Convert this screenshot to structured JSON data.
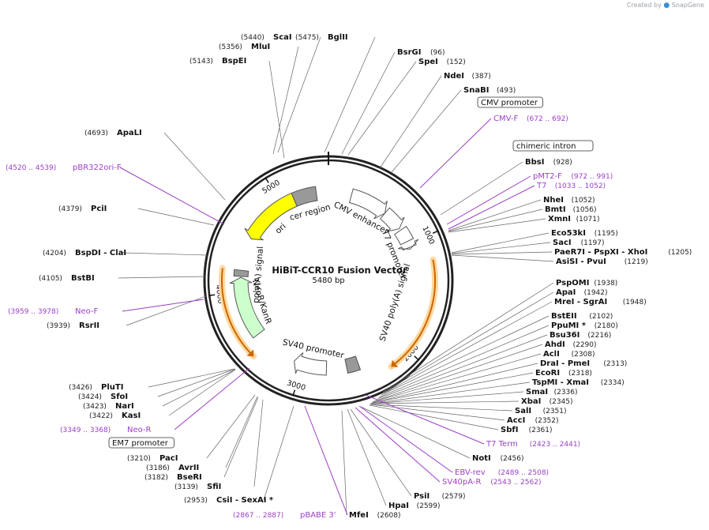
{
  "credit": {
    "prefix": "Created by",
    "brand": "SnapGene"
  },
  "plasmid": {
    "name": "HiBiT-CCR10 Fusion Vector",
    "size_label": "5480 bp",
    "length": 5480
  },
  "ticks": [
    "1000",
    "2000",
    "3000",
    "4000",
    "5000"
  ],
  "features": [
    {
      "name": "CMV enhancer",
      "start": 230,
      "end": 610,
      "color": "#ffffff",
      "dir": 1
    },
    {
      "name": "CMV promoter",
      "start": 610,
      "end": 820,
      "color": "#ffffff",
      "dir": 1
    },
    {
      "name": "chimeric intron",
      "start": 840,
      "end": 970,
      "color": "#ffffff",
      "dir": 0
    },
    {
      "name": "T7 promoter",
      "start": 1033,
      "end": 1052,
      "color": "#ffffff",
      "dir": 1
    },
    {
      "name": "SV40 poly(A) signal",
      "start": 2440,
      "end": 2560,
      "color": "#999999",
      "dir": 0
    },
    {
      "name": "SV40 promoter",
      "start": 2760,
      "end": 3090,
      "color": "#ffffff",
      "dir": 1
    },
    {
      "name": "NeoR/KanR",
      "start": 3540,
      "end": 4140,
      "color": "#ccffcc",
      "dir": 1
    },
    {
      "name": "HSV TK poly(A) signal",
      "start": 4150,
      "end": 4210,
      "color": "#999999",
      "dir": 0
    },
    {
      "name": "ori",
      "start": 4540,
      "end": 5130,
      "color": "#ffff00",
      "dir": -1
    },
    {
      "name": "cer region",
      "start": 5130,
      "end": 5360,
      "color": "#999999",
      "dir": 0
    }
  ],
  "inner_labels": [
    {
      "text": "CMV enhancer",
      "pos": 420
    },
    {
      "text": "T7 promoter",
      "pos": 1040
    },
    {
      "text": "SV40 poly(A) signal",
      "pos": 1650
    },
    {
      "text": "SV40 promoter",
      "pos": 2930
    },
    {
      "text": "NeoR/KanR",
      "pos": 3840
    },
    {
      "text": "poly(A) signal",
      "pos": 4180
    },
    {
      "text": "ori",
      "pos": 4830
    },
    {
      "text": "cer region",
      "pos": 5250
    }
  ],
  "orf_arcs": [
    {
      "start": 1200,
      "end": 2190,
      "dir": 1,
      "color": "#cc6600"
    },
    {
      "start": 3420,
      "end": 4210,
      "dir": -1,
      "color": "#cc6600"
    }
  ],
  "labels": [
    {
      "name": "ScaI",
      "pos": "(5440)",
      "color": "#111"
    },
    {
      "name": "MluI",
      "pos": "(5356)",
      "color": "#111"
    },
    {
      "name": "BspEI",
      "pos": "(5143)",
      "color": "#111"
    },
    {
      "name": "BglII",
      "pos": "(5475)",
      "color": "#111"
    },
    {
      "name": "BsrGI",
      "pos": "(96)",
      "color": "#111"
    },
    {
      "name": "SpeI",
      "pos": "(152)",
      "color": "#111"
    },
    {
      "name": "NdeI",
      "pos": "(387)",
      "color": "#111"
    },
    {
      "name": "SnaBI",
      "pos": "(493)",
      "color": "#111"
    },
    {
      "name": "CMV promoter",
      "pos": "",
      "color": "box"
    },
    {
      "name": "CMV-F",
      "pos": "(672 .. 692)",
      "color": "purple"
    },
    {
      "name": "chimeric intron",
      "pos": "",
      "color": "box"
    },
    {
      "name": "BbsI",
      "pos": "(928)",
      "color": "#111"
    },
    {
      "name": "pMT2-F",
      "pos": "(972 .. 991)",
      "color": "purple"
    },
    {
      "name": "T7",
      "pos": "(1033 .. 1052)",
      "color": "purple"
    },
    {
      "name": "NheI",
      "pos": "(1052)",
      "color": "#111"
    },
    {
      "name": "BmtI",
      "pos": "(1056)",
      "color": "#111"
    },
    {
      "name": "XmnI",
      "pos": "(1071)",
      "color": "#111"
    },
    {
      "name": "Eco53kI",
      "pos": "(1195)",
      "color": "#111"
    },
    {
      "name": "SacI",
      "pos": "(1197)",
      "color": "#111"
    },
    {
      "name": "PaeR7I - PspXI - XhoI",
      "pos": "(1205)",
      "color": "#111"
    },
    {
      "name": "AsiSI - PvuI",
      "pos": "(1219)",
      "color": "#111"
    },
    {
      "name": "PspOMI",
      "pos": "(1938)",
      "color": "#111"
    },
    {
      "name": "ApaI",
      "pos": "(1942)",
      "color": "#111"
    },
    {
      "name": "MreI - SgrAI",
      "pos": "(1948)",
      "color": "#111"
    },
    {
      "name": "BstEII",
      "pos": "(2102)",
      "color": "#111"
    },
    {
      "name": "PpuMI *",
      "pos": "(2180)",
      "color": "#111"
    },
    {
      "name": "Bsu36I",
      "pos": "(2216)",
      "color": "#111"
    },
    {
      "name": "AhdI",
      "pos": "(2290)",
      "color": "#111"
    },
    {
      "name": "AclI",
      "pos": "(2308)",
      "color": "#111"
    },
    {
      "name": "DraI - PmeI",
      "pos": "(2313)",
      "color": "#111"
    },
    {
      "name": "EcoRI",
      "pos": "(2318)",
      "color": "#111"
    },
    {
      "name": "TspMI - XmaI",
      "pos": "(2334)",
      "color": "#111"
    },
    {
      "name": "SmaI",
      "pos": "(2336)",
      "color": "#111"
    },
    {
      "name": "XbaI",
      "pos": "(2345)",
      "color": "#111"
    },
    {
      "name": "SalI",
      "pos": "(2351)",
      "color": "#111"
    },
    {
      "name": "AccI",
      "pos": "(2352)",
      "color": "#111"
    },
    {
      "name": "SbfI",
      "pos": "(2361)",
      "color": "#111"
    },
    {
      "name": "T7 Term",
      "pos": "(2423 .. 2441)",
      "color": "purple"
    },
    {
      "name": "NotI",
      "pos": "(2456)",
      "color": "#111"
    },
    {
      "name": "EBV-rev",
      "pos": "(2489 .. 2508)",
      "color": "purple"
    },
    {
      "name": "SV40pA-R",
      "pos": "(2543 .. 2562)",
      "color": "purple"
    },
    {
      "name": "PsiI",
      "pos": "(2579)",
      "color": "#111"
    },
    {
      "name": "HpaI",
      "pos": "(2599)",
      "color": "#111"
    },
    {
      "name": "MfeI",
      "pos": "(2608)",
      "color": "#111"
    },
    {
      "name": "pBABE 3'",
      "pos": "(2867 .. 2887)",
      "color": "purple"
    },
    {
      "name": "CsiI - SexAI *",
      "pos": "(2953)",
      "color": "#111"
    },
    {
      "name": "SfiI",
      "pos": "(3139)",
      "color": "#111"
    },
    {
      "name": "BseRI",
      "pos": "(3182)",
      "color": "#111"
    },
    {
      "name": "AvrII",
      "pos": "(3186)",
      "color": "#111"
    },
    {
      "name": "PacI",
      "pos": "(3210)",
      "color": "#111"
    },
    {
      "name": "EM7 promoter",
      "pos": "",
      "color": "box"
    },
    {
      "name": "Neo-R",
      "pos": "(3349 .. 3368)",
      "color": "purple"
    },
    {
      "name": "KasI",
      "pos": "(3422)",
      "color": "#111"
    },
    {
      "name": "NarI",
      "pos": "(3423)",
      "color": "#111"
    },
    {
      "name": "SfoI",
      "pos": "(3424)",
      "color": "#111"
    },
    {
      "name": "PluTI",
      "pos": "(3426)",
      "color": "#111"
    },
    {
      "name": "RsrII",
      "pos": "(3939)",
      "color": "#111"
    },
    {
      "name": "Neo-F",
      "pos": "(3959 .. 3978)",
      "color": "purple"
    },
    {
      "name": "BstBI",
      "pos": "(4105)",
      "color": "#111"
    },
    {
      "name": "BspDI - ClaI",
      "pos": "(4204)",
      "color": "#111"
    },
    {
      "name": "PciI",
      "pos": "(4379)",
      "color": "#111"
    },
    {
      "name": "pBR322ori-F",
      "pos": "(4520 .. 4539)",
      "color": "purple"
    },
    {
      "name": "ApaLI",
      "pos": "(4693)",
      "color": "#111"
    }
  ]
}
